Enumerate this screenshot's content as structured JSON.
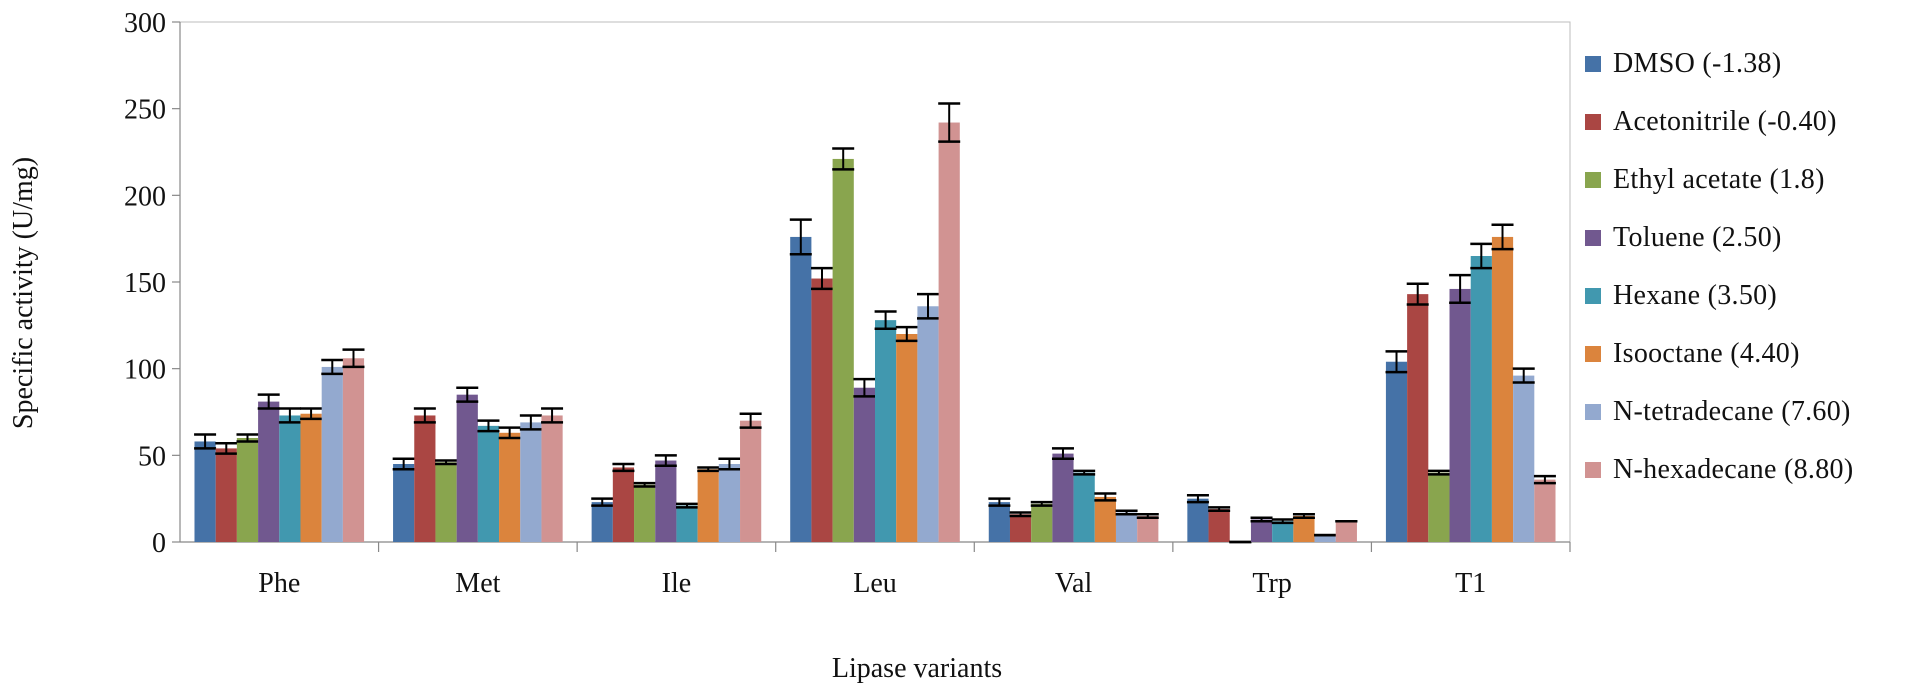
{
  "chart_data": {
    "type": "bar",
    "xlabel": "Lipase variants",
    "ylabel": "Specific activity (U/mg)",
    "ylim": [
      0,
      300
    ],
    "yticks": [
      0,
      50,
      100,
      150,
      200,
      250,
      300
    ],
    "grid": false,
    "legend_position": "right",
    "categories": [
      "Phe",
      "Met",
      "Ile",
      "Leu",
      "Val",
      "Trp",
      "T1"
    ],
    "series": [
      {
        "name": "DMSO (-1.38)",
        "color": "#4572A7",
        "values": [
          58,
          45,
          23,
          176,
          23,
          25,
          104
        ],
        "errors": [
          4,
          3,
          2,
          10,
          2,
          2,
          6
        ]
      },
      {
        "name": "Acetonitrile (-0.40)",
        "color": "#AA4643",
        "values": [
          54,
          73,
          43,
          152,
          16,
          19,
          143
        ],
        "errors": [
          3,
          4,
          2,
          6,
          1,
          1,
          6
        ]
      },
      {
        "name": "Ethyl acetate (1.8)",
        "color": "#89A54E",
        "values": [
          60,
          46,
          33,
          221,
          22,
          0,
          40
        ],
        "errors": [
          2,
          1,
          1,
          6,
          1,
          0,
          1
        ]
      },
      {
        "name": "Toluene (2.50)",
        "color": "#71588F",
        "values": [
          81,
          85,
          47,
          89,
          51,
          13,
          146
        ],
        "errors": [
          4,
          4,
          3,
          5,
          3,
          1,
          8
        ]
      },
      {
        "name": "Hexane (3.50)",
        "color": "#4198AF",
        "values": [
          73,
          67,
          21,
          128,
          40,
          12,
          165
        ],
        "errors": [
          4,
          3,
          1,
          5,
          1,
          1,
          7
        ]
      },
      {
        "name": "Isooctane (4.40)",
        "color": "#DB843D",
        "values": [
          74,
          63,
          42,
          120,
          26,
          15,
          176
        ],
        "errors": [
          3,
          3,
          1,
          4,
          2,
          1,
          7
        ]
      },
      {
        "name": "N-tetradecane (7.60)",
        "color": "#93A9CF",
        "values": [
          101,
          69,
          45,
          136,
          17,
          4,
          96
        ],
        "errors": [
          4,
          4,
          3,
          7,
          1,
          0,
          4
        ]
      },
      {
        "name": "N-hexadecane (8.80)",
        "color": "#D19392",
        "values": [
          106,
          73,
          70,
          242,
          15,
          12,
          36
        ],
        "errors": [
          5,
          4,
          4,
          11,
          1,
          0,
          2
        ]
      }
    ]
  }
}
